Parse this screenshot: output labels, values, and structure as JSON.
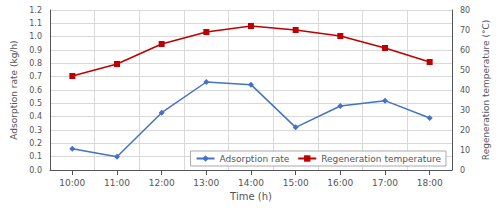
{
  "chart_data": {
    "type": "line",
    "categories": [
      "10:00",
      "11:00",
      "12:00",
      "13:00",
      "14:00",
      "15:00",
      "16:00",
      "17:00",
      "18:00"
    ],
    "xlabel": "Time (h)",
    "ylabel": "Adsorption rate (kg/h)",
    "y2label": "Regeneration temperature (°C)",
    "series": [
      {
        "name": "Adsorption rate",
        "color": "#4472C4",
        "marker": "diamond",
        "values": [
          0.16,
          0.1,
          0.43,
          0.66,
          0.64,
          0.32,
          0.48,
          0.52,
          0.39
        ]
      },
      {
        "name": "Regeneration temperature",
        "color": "#C00000",
        "marker": "square",
        "axis": "y2",
        "values": [
          47,
          53,
          63,
          69,
          72,
          70,
          67,
          61,
          54
        ]
      }
    ],
    "ylim": [
      0,
      1.2
    ],
    "yticks": [
      {
        "value": 0,
        "label": "0.0"
      },
      0.1,
      0.2,
      0.3,
      0.4,
      0.5,
      0.6,
      0.7,
      0.8,
      0.9,
      {
        "value": 1.0,
        "label": "1.0"
      },
      1.1,
      1.2
    ],
    "y2lim": [
      0,
      80
    ],
    "y2ticks": [
      0,
      10,
      20,
      30,
      40,
      50,
      60,
      70,
      80
    ],
    "grid": true,
    "legend": "lower right"
  }
}
